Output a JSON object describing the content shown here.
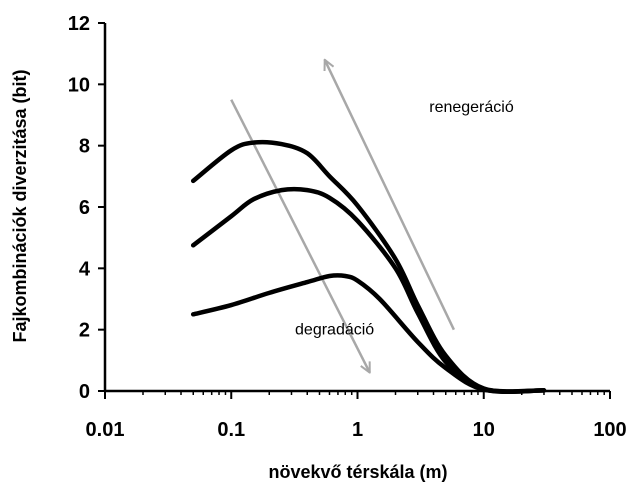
{
  "chart_data": {
    "type": "line",
    "xlabel": "növekvő térskála (m)",
    "ylabel": "Fajkombinációk diverzitása (bit)",
    "x_scale": "log",
    "xlim": [
      0.01,
      100
    ],
    "ylim": [
      0,
      12
    ],
    "x_ticks": [
      0.01,
      0.1,
      1,
      10,
      100
    ],
    "x_tick_labels": [
      "0.01",
      "0.1",
      "1",
      "10",
      "100"
    ],
    "y_ticks": [
      0,
      2,
      4,
      6,
      8,
      10,
      12
    ],
    "y_tick_labels": [
      "0",
      "2",
      "4",
      "6",
      "8",
      "10",
      "12"
    ],
    "grid": false,
    "series": [
      {
        "x": [
          0.05,
          0.1,
          0.15,
          0.25,
          0.4,
          0.6,
          1,
          2,
          3,
          5,
          10,
          30
        ],
        "y": [
          6.85,
          7.85,
          8.1,
          8.05,
          7.75,
          7.0,
          6.05,
          4.3,
          2.8,
          1.15,
          0.08,
          0.02
        ]
      },
      {
        "x": [
          0.05,
          0.1,
          0.15,
          0.25,
          0.4,
          0.6,
          1,
          2,
          3,
          5,
          10,
          30
        ],
        "y": [
          4.75,
          5.7,
          6.25,
          6.55,
          6.55,
          6.3,
          5.55,
          4.0,
          2.55,
          0.95,
          0.05,
          0.02
        ]
      },
      {
        "x": [
          0.05,
          0.1,
          0.2,
          0.4,
          0.6,
          0.8,
          1,
          1.5,
          3,
          5,
          10,
          30
        ],
        "y": [
          2.5,
          2.8,
          3.2,
          3.55,
          3.75,
          3.75,
          3.6,
          3.0,
          1.6,
          0.75,
          0.05,
          0.02
        ]
      }
    ],
    "arrows": [
      {
        "label": "degradáció",
        "from": [
          0.1,
          9.5
        ],
        "to": [
          1.25,
          0.6
        ],
        "color": "#a8a8a8"
      },
      {
        "label": "renegeráció",
        "from": [
          5.8,
          2.0
        ],
        "to": [
          0.55,
          10.8
        ],
        "color": "#a8a8a8"
      }
    ],
    "annotations": [
      {
        "text": "renegeráció",
        "x": 3.7,
        "y": 9.1
      },
      {
        "text": "degradáció",
        "x": 0.32,
        "y": 1.85
      }
    ]
  }
}
